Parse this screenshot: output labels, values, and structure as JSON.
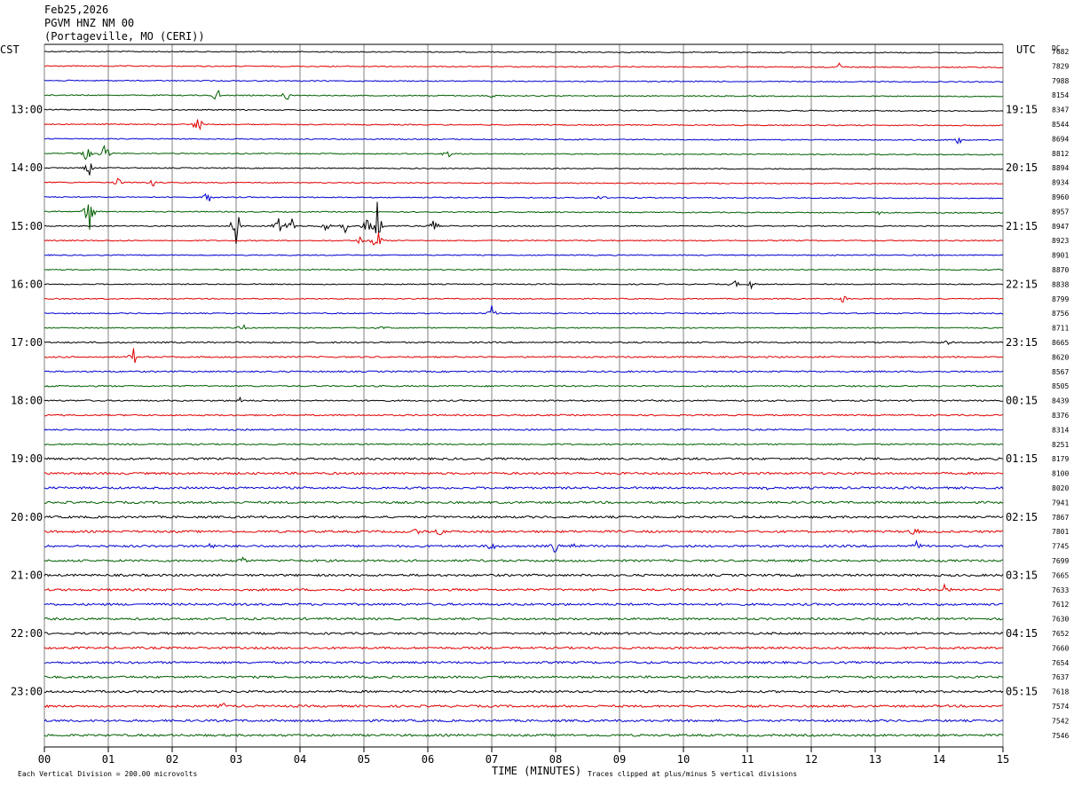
{
  "header": {
    "date": "Feb25,2026",
    "station": "PGVM HNZ NM 00",
    "location": "(Portageville, MO (CERI))",
    "left_zone": "CST",
    "right_zone": "UTC",
    "dc_label": "DC"
  },
  "footer": {
    "scale_note": "Each Vertical Division =  200.00 microvolts",
    "xlabel": "TIME (MINUTES)",
    "clip_note": "Traces clipped at plus/minus 5 vertical divisions"
  },
  "colors": {
    "trace_cycle": [
      "#000000",
      "#e00000",
      "#0000d0",
      "#006000"
    ],
    "grid": "#808080",
    "background": "#ffffff"
  },
  "chart_data": {
    "type": "line",
    "title": "PGVM HNZ NM 00",
    "xlabel": "TIME (MINUTES)",
    "xlim": [
      0,
      15
    ],
    "x_ticks": [
      "00",
      "01",
      "02",
      "03",
      "04",
      "05",
      "06",
      "07",
      "08",
      "09",
      "10",
      "11",
      "12",
      "13",
      "14",
      "15"
    ],
    "left_time_labels": [
      {
        "row": 4,
        "label": "13:00"
      },
      {
        "row": 8,
        "label": "14:00"
      },
      {
        "row": 12,
        "label": "15:00"
      },
      {
        "row": 16,
        "label": "16:00"
      },
      {
        "row": 20,
        "label": "17:00"
      },
      {
        "row": 24,
        "label": "18:00"
      },
      {
        "row": 28,
        "label": "19:00"
      },
      {
        "row": 32,
        "label": "20:00"
      },
      {
        "row": 36,
        "label": "21:00"
      },
      {
        "row": 40,
        "label": "22:00"
      },
      {
        "row": 44,
        "label": "23:00"
      }
    ],
    "right_time_labels": [
      {
        "row": 4,
        "label": "19:15"
      },
      {
        "row": 8,
        "label": "20:15"
      },
      {
        "row": 12,
        "label": "21:15"
      },
      {
        "row": 16,
        "label": "22:15"
      },
      {
        "row": 20,
        "label": "23:15"
      },
      {
        "row": 24,
        "label": "00:15"
      },
      {
        "row": 28,
        "label": "01:15"
      },
      {
        "row": 32,
        "label": "02:15"
      },
      {
        "row": 36,
        "label": "03:15"
      },
      {
        "row": 40,
        "label": "04:15"
      },
      {
        "row": 44,
        "label": "05:15"
      }
    ],
    "dc_offsets": [
      "7682",
      "7829",
      "7988",
      "8154",
      "8347",
      "8544",
      "8694",
      "8812",
      "8894",
      "8934",
      "8960",
      "8957",
      "8947",
      "8923",
      "8901",
      "8870",
      "8838",
      "8799",
      "8756",
      "8711",
      "8665",
      "8620",
      "8567",
      "8505",
      "8439",
      "8376",
      "8314",
      "8251",
      "8179",
      "8100",
      "8020",
      "7941",
      "7867",
      "7801",
      "7745",
      "7699",
      "7665",
      "7633",
      "7612",
      "7630",
      "7652",
      "7660",
      "7654",
      "7637",
      "7618",
      "7574",
      "7542",
      "7546"
    ],
    "trace_rows": 48,
    "events": [
      {
        "row": 1,
        "minute": 12.45,
        "amp": 1.2
      },
      {
        "row": 3,
        "minute": 2.7,
        "amp": 1.8
      },
      {
        "row": 3,
        "minute": 3.8,
        "amp": 1.6
      },
      {
        "row": 3,
        "minute": 7.0,
        "amp": 0.8
      },
      {
        "row": 5,
        "minute": 2.4,
        "amp": 2.4
      },
      {
        "row": 6,
        "minute": 14.3,
        "amp": 1.2
      },
      {
        "row": 7,
        "minute": 0.65,
        "amp": 2.4
      },
      {
        "row": 7,
        "minute": 0.95,
        "amp": 2.2
      },
      {
        "row": 7,
        "minute": 6.3,
        "amp": 1.2
      },
      {
        "row": 8,
        "minute": 0.7,
        "amp": 1.5
      },
      {
        "row": 9,
        "minute": 1.15,
        "amp": 1.2
      },
      {
        "row": 9,
        "minute": 1.7,
        "amp": 0.8
      },
      {
        "row": 10,
        "minute": 2.55,
        "amp": 1.5
      },
      {
        "row": 10,
        "minute": 8.7,
        "amp": 0.8
      },
      {
        "row": 11,
        "minute": 0.7,
        "amp": 5.0
      },
      {
        "row": 11,
        "minute": 13.05,
        "amp": 1.0
      },
      {
        "row": 12,
        "minute": 3.0,
        "amp": 5.0
      },
      {
        "row": 12,
        "minute": 3.65,
        "amp": 2.2
      },
      {
        "row": 12,
        "minute": 3.85,
        "amp": 2.5
      },
      {
        "row": 12,
        "minute": 4.4,
        "amp": 1.8
      },
      {
        "row": 12,
        "minute": 4.7,
        "amp": 1.4
      },
      {
        "row": 12,
        "minute": 5.05,
        "amp": 1.8
      },
      {
        "row": 12,
        "minute": 5.2,
        "amp": 5.0
      },
      {
        "row": 12,
        "minute": 6.1,
        "amp": 1.8
      },
      {
        "row": 13,
        "minute": 4.95,
        "amp": 1.2
      },
      {
        "row": 13,
        "minute": 5.2,
        "amp": 3.0
      },
      {
        "row": 16,
        "minute": 10.8,
        "amp": 0.9
      },
      {
        "row": 16,
        "minute": 11.05,
        "amp": 1.0
      },
      {
        "row": 17,
        "minute": 12.5,
        "amp": 0.9
      },
      {
        "row": 18,
        "minute": 7.0,
        "amp": 1.6
      },
      {
        "row": 19,
        "minute": 3.1,
        "amp": 1.0
      },
      {
        "row": 19,
        "minute": 5.3,
        "amp": 0.7
      },
      {
        "row": 20,
        "minute": 14.1,
        "amp": 0.6
      },
      {
        "row": 21,
        "minute": 1.4,
        "amp": 1.6
      },
      {
        "row": 24,
        "minute": 3.05,
        "amp": 0.7
      },
      {
        "row": 30,
        "minute": 11.3,
        "amp": 0.6
      },
      {
        "row": 33,
        "minute": 5.8,
        "amp": 1.2
      },
      {
        "row": 33,
        "minute": 6.2,
        "amp": 0.9
      },
      {
        "row": 33,
        "minute": 13.6,
        "amp": 1.0
      },
      {
        "row": 34,
        "minute": 2.6,
        "amp": 1.0
      },
      {
        "row": 34,
        "minute": 7.0,
        "amp": 1.1
      },
      {
        "row": 34,
        "minute": 8.0,
        "amp": 1.4
      },
      {
        "row": 34,
        "minute": 8.3,
        "amp": 1.1
      },
      {
        "row": 34,
        "minute": 13.65,
        "amp": 1.1
      },
      {
        "row": 35,
        "minute": 3.1,
        "amp": 0.8
      },
      {
        "row": 37,
        "minute": 14.1,
        "amp": 1.2
      },
      {
        "row": 45,
        "minute": 2.8,
        "amp": 0.6
      }
    ]
  }
}
